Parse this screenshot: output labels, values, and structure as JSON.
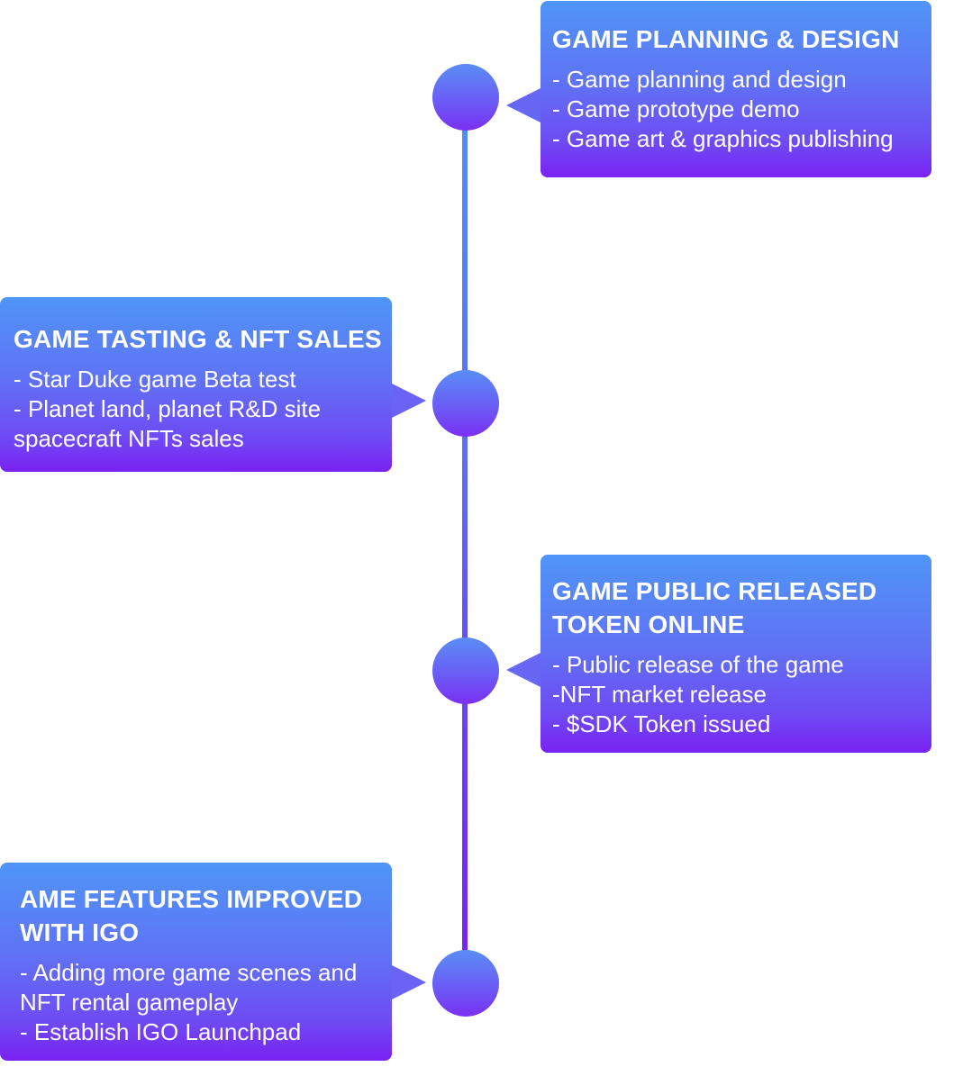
{
  "milestones": [
    {
      "title": "GAME PLANNING & DESIGN",
      "items": [
        "- Game planning and design",
        "- Game prototype demo",
        "- Game art & graphics publishing"
      ]
    },
    {
      "title": "GAME TASTING & NFT SALES",
      "items": [
        "- Star Duke game Beta test",
        "- Planet land, planet R&D site",
        "spacecraft NFTs sales"
      ]
    },
    {
      "title": "GAME  PUBLIC RELEASED\nTOKEN ONLINE",
      "items": [
        "- Public release of the game",
        "-NFT market release",
        "- $SDK Token issued"
      ]
    },
    {
      "title": "AME FEATURES IMPROVED\nWITH IGO",
      "items": [
        "- Adding more game scenes and",
        "NFT rental gameplay",
        "- Establish IGO Launchpad"
      ]
    }
  ]
}
